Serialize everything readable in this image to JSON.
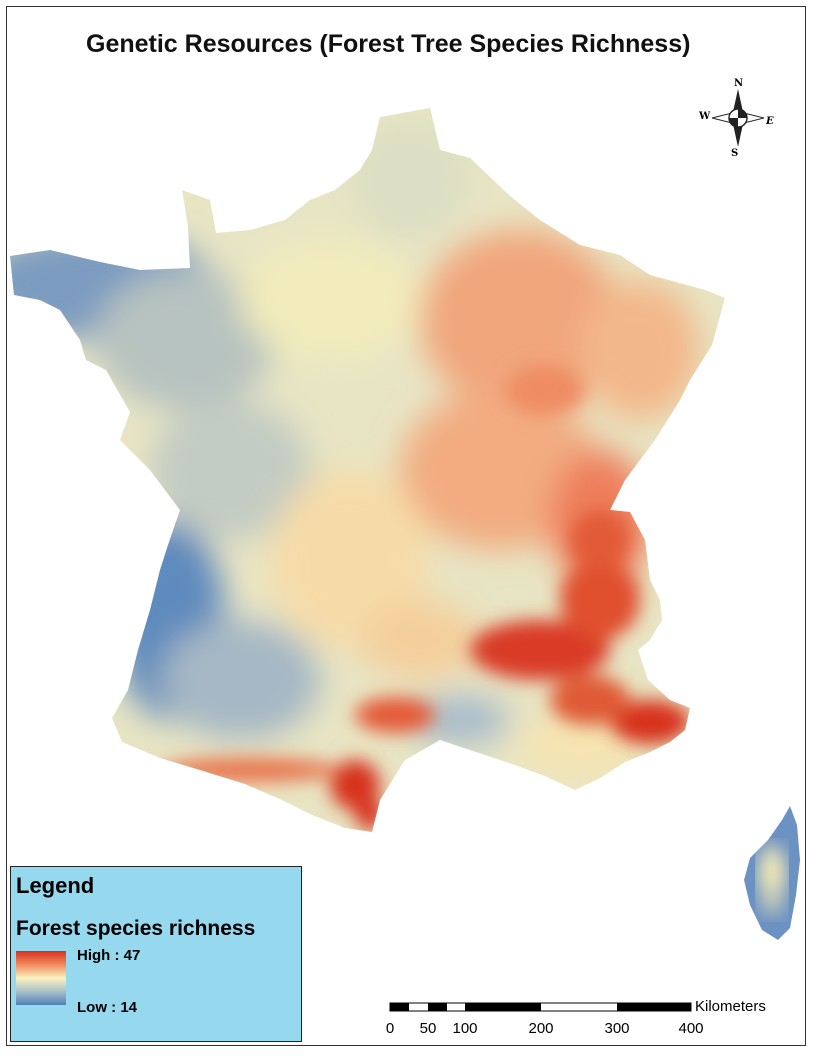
{
  "title": "Genetic Resources (Forest Tree Species Richness)",
  "compass": {
    "n": "N",
    "s": "S",
    "e": "E",
    "w": "W"
  },
  "legend": {
    "title": "Legend",
    "subtitle": "Forest species richness",
    "high_label": "High : 47",
    "low_label": "Low : 14",
    "ramp_colors": [
      "#d7301f",
      "#f08a5c",
      "#fbf2bf",
      "#a9c0c9",
      "#4f80b9"
    ]
  },
  "scale_bar": {
    "unit": "Kilometers",
    "ticks": [
      "0",
      "50",
      "100",
      "200",
      "300",
      "400"
    ]
  }
}
